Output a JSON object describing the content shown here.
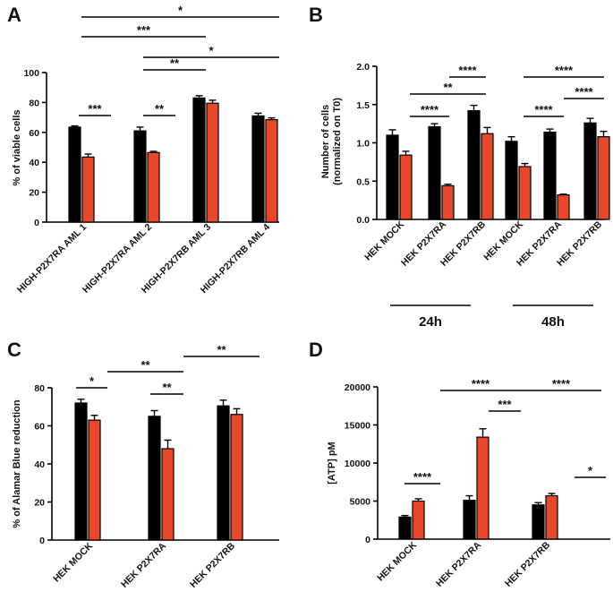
{
  "colors": {
    "black_bar": "#000000",
    "red_bar": "#e8482a",
    "axis": "#000000"
  },
  "chart_data": [
    {
      "panel": "A",
      "type": "bar",
      "title": "",
      "xlabel": "",
      "ylabel": "% of viable cells",
      "ylim": [
        0,
        100
      ],
      "yticks": [
        "0",
        "20",
        "40",
        "60",
        "80",
        "100"
      ],
      "categories": [
        "HIGH-P2X7RA AML 1",
        "HIGH-P2X7RA AML 2",
        "HIGH-P2X7RB AML 3",
        "HIGH-P2X7RB AML 4"
      ],
      "series": [
        {
          "name": "black",
          "color": "#000000",
          "values": [
            63.5,
            61,
            83,
            71
          ],
          "errors": [
            0.8,
            2.5,
            1.5,
            1.8
          ]
        },
        {
          "name": "red",
          "color": "#e8482a",
          "values": [
            43.5,
            46.5,
            79.5,
            68.5
          ],
          "errors": [
            2.0,
            0.8,
            2.0,
            1.2
          ]
        }
      ],
      "significance": [
        {
          "label": "*",
          "level": 1
        },
        {
          "label": "***",
          "level": 2
        },
        {
          "label": "*",
          "level": 3
        },
        {
          "label": "**",
          "level": 4
        },
        {
          "label": "***",
          "level": 5
        },
        {
          "label": "**",
          "level": 6
        }
      ]
    },
    {
      "panel": "B",
      "type": "bar",
      "title": "",
      "xlabel": "",
      "ylabel": "Number of cells (normalized on T0)",
      "ylabel_lines": [
        "Number of cells",
        "(normalized on T0)"
      ],
      "ylim": [
        0,
        2.0
      ],
      "yticks": [
        "0.0",
        "0.5",
        "1.0",
        "1.5",
        "2.0"
      ],
      "categories": [
        "HEK MOCK",
        "HEK P2X7RA",
        "HEK P2X7RB",
        "HEK MOCK",
        "HEK P2X7RA",
        "HEK P2X7RB"
      ],
      "groups": [
        "24h",
        "48h"
      ],
      "series": [
        {
          "name": "black",
          "color": "#000000",
          "values": [
            1.1,
            1.21,
            1.42,
            1.02,
            1.14,
            1.26
          ],
          "errors": [
            0.07,
            0.04,
            0.07,
            0.06,
            0.04,
            0.06
          ]
        },
        {
          "name": "red",
          "color": "#e8482a",
          "values": [
            0.84,
            0.44,
            1.12,
            0.69,
            0.32,
            1.08
          ],
          "errors": [
            0.05,
            0.02,
            0.08,
            0.04,
            0.01,
            0.07
          ]
        }
      ],
      "significance": [
        {
          "label": "****",
          "level": 1
        },
        {
          "label": "**",
          "level": 2
        },
        {
          "label": "****",
          "level": 3
        },
        {
          "label": "****",
          "level": 4
        },
        {
          "label": "****",
          "level": 5
        },
        {
          "label": "****",
          "level": 6
        }
      ]
    },
    {
      "panel": "C",
      "type": "bar",
      "title": "",
      "xlabel": "",
      "ylabel": "% of Alamar Blue reduction",
      "ylim": [
        0,
        80
      ],
      "yticks": [
        "0",
        "20",
        "40",
        "60",
        "80"
      ],
      "categories": [
        "HEK MOCK",
        "HEK P2X7RA",
        "HEK P2X7RB"
      ],
      "series": [
        {
          "name": "black",
          "color": "#000000",
          "values": [
            72,
            65,
            70.5
          ],
          "errors": [
            2.0,
            3.0,
            3.0
          ]
        },
        {
          "name": "red",
          "color": "#e8482a",
          "values": [
            63,
            48,
            66
          ],
          "errors": [
            2.5,
            4.5,
            3.0
          ]
        }
      ],
      "significance": [
        {
          "label": "*",
          "level": 1
        },
        {
          "label": "**",
          "level": 2
        },
        {
          "label": "**",
          "level": 3
        },
        {
          "label": "**",
          "level": 4
        }
      ]
    },
    {
      "panel": "D",
      "type": "bar",
      "title": "",
      "xlabel": "",
      "ylabel": "[ATP] pM",
      "ylim": [
        0,
        20000
      ],
      "yticks": [
        "0",
        "5000",
        "10000",
        "15000",
        "20000"
      ],
      "categories": [
        "HEK MOCK",
        "HEK P2X7RA",
        "HEK P2X7RB"
      ],
      "series": [
        {
          "name": "black",
          "color": "#000000",
          "values": [
            2900,
            5100,
            4500
          ],
          "errors": [
            200,
            600,
            300
          ]
        },
        {
          "name": "red",
          "color": "#e8482a",
          "values": [
            5000,
            13400,
            5700
          ],
          "errors": [
            300,
            1100,
            300
          ]
        }
      ],
      "significance": [
        {
          "label": "****",
          "level": 1
        },
        {
          "label": "****",
          "level": 2
        },
        {
          "label": "***",
          "level": 3
        },
        {
          "label": "****",
          "level": 4
        },
        {
          "label": "*",
          "level": 5
        }
      ]
    }
  ]
}
